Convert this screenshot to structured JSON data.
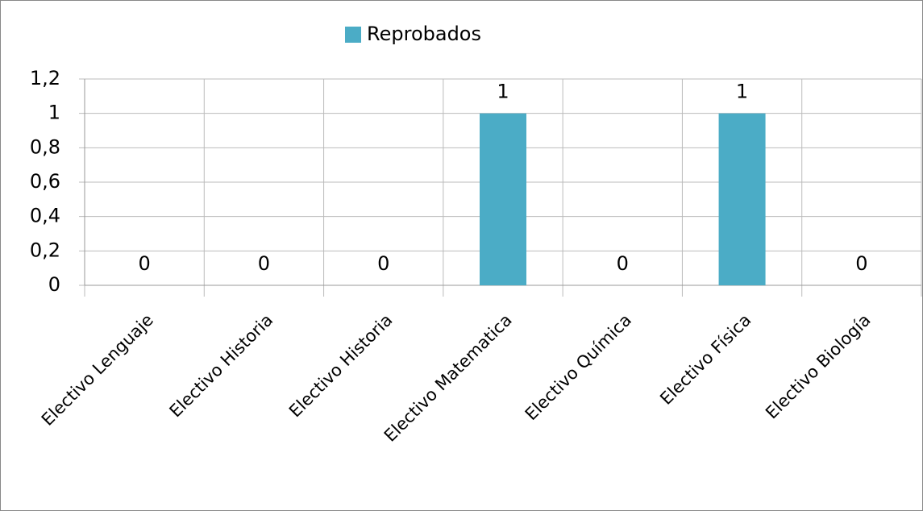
{
  "chart_data": {
    "type": "bar",
    "categories": [
      "Electivo Lenguaje",
      "Electivo Historia",
      "Electivo Historia",
      "Electivo Matematica",
      "Electivo Química",
      "Electivo Física",
      "Electivo Biología"
    ],
    "series": [
      {
        "name": "Reprobados",
        "color": "#4bacc6",
        "values": [
          0,
          0,
          0,
          1,
          0,
          1,
          0
        ]
      }
    ],
    "ylim": [
      0,
      1.2
    ],
    "yticks": [
      0,
      {
        "value": 0.2,
        "label": "0,2"
      },
      {
        "value": 0.4,
        "label": "0,4"
      },
      {
        "value": 0.6,
        "label": "0,6"
      },
      {
        "value": 0.8,
        "label": "0,8"
      },
      1,
      {
        "value": 1.2,
        "label": "1,2"
      }
    ],
    "grid": true,
    "legend": "top"
  }
}
